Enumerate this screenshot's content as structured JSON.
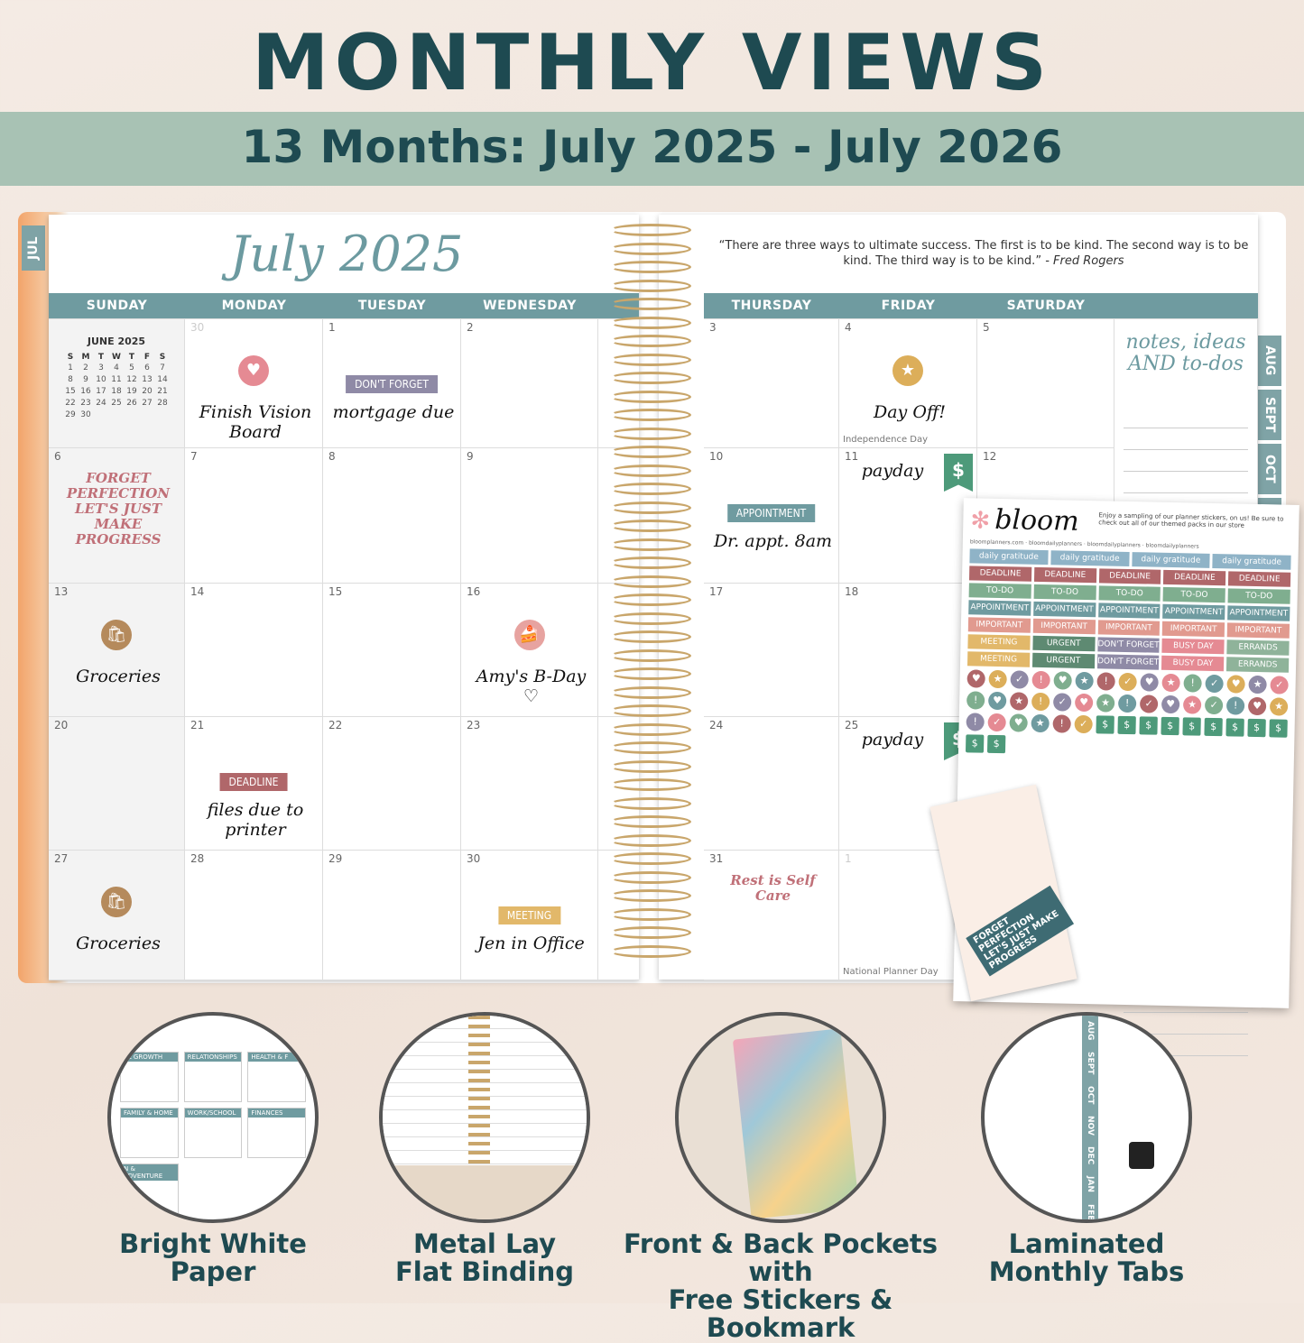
{
  "header": {
    "title": "MONTHLY VIEWS",
    "subtitle": "13 Months: July 2025 - July 2026"
  },
  "planner": {
    "month_title": "July 2025",
    "current_tab": "JUL",
    "quote": "“There are three ways to ultimate success. The first is to be kind. The second way is to be kind. The third way is to be kind.”",
    "quote_author": "- Fred Rogers",
    "left_days": [
      "SUNDAY",
      "MONDAY",
      "TUESDAY",
      "WEDNESDAY"
    ],
    "right_days": [
      "THURSDAY",
      "FRIDAY",
      "SATURDAY"
    ],
    "side_tabs": [
      "AUG",
      "SEPT",
      "OCT",
      "N"
    ],
    "mini_calendar": {
      "title": "JUNE 2025",
      "weekdays": [
        "S",
        "M",
        "T",
        "W",
        "T",
        "F",
        "S"
      ],
      "weeks": [
        [
          "1",
          "2",
          "3",
          "4",
          "5",
          "6",
          "7"
        ],
        [
          "8",
          "9",
          "10",
          "11",
          "12",
          "13",
          "14"
        ],
        [
          "15",
          "16",
          "17",
          "18",
          "19",
          "20",
          "21"
        ],
        [
          "22",
          "23",
          "24",
          "25",
          "26",
          "27",
          "28"
        ],
        [
          "29",
          "30",
          "",
          "",
          "",
          "",
          ""
        ]
      ]
    },
    "left_cells": [
      {
        "mini": true
      },
      {
        "num": "30",
        "faded": true,
        "icon": "heart",
        "icon_color": "#e58a93",
        "note": "Finish Vision Board"
      },
      {
        "num": "1",
        "tag": "DON'T FORGET",
        "tag_color": "#8f8aa6",
        "note": "mortgage due"
      },
      {
        "num": "2"
      },
      {
        "num": "6",
        "sticker": "FORGET PERFECTION LET'S JUST MAKE PROGRESS"
      },
      {
        "num": "7"
      },
      {
        "num": "8"
      },
      {
        "num": "9"
      },
      {
        "num": "13",
        "icon": "grocery-bag",
        "icon_color": "#b58a5c",
        "note": "Groceries"
      },
      {
        "num": "14"
      },
      {
        "num": "15"
      },
      {
        "num": "16",
        "icon": "cake",
        "icon_color": "#e7a3a0",
        "note": "Amy's B-Day ♡"
      },
      {
        "num": "20"
      },
      {
        "num": "21",
        "tag": "DEADLINE",
        "tag_color": "#b0676a",
        "note": "files due to printer"
      },
      {
        "num": "22"
      },
      {
        "num": "23"
      },
      {
        "num": "27",
        "icon": "grocery-bag",
        "icon_color": "#b58a5c",
        "note": "Groceries"
      },
      {
        "num": "28"
      },
      {
        "num": "29"
      },
      {
        "num": "30",
        "tag": "MEETING",
        "tag_color": "#e2b86a",
        "note": "Jen in Office"
      }
    ],
    "right_cells": [
      {
        "num": "3"
      },
      {
        "num": "4",
        "icon": "star",
        "icon_color": "#dcae5a",
        "note": "Day Off!",
        "small": "Independence Day"
      },
      {
        "num": "5"
      },
      {
        "num": "10",
        "tag": "APPOINTMENT",
        "tag_color": "#6f9ba0",
        "note": "Dr. appt. 8am"
      },
      {
        "num": "11",
        "note": "payday",
        "dollar": "$"
      },
      {
        "num": "12"
      },
      {
        "num": "17"
      },
      {
        "num": "18"
      },
      {
        "num": ""
      },
      {
        "num": "24"
      },
      {
        "num": "25",
        "note": "payday",
        "dollar": "$"
      },
      {
        "num": ""
      },
      {
        "num": "31",
        "sticker": "Rest is Self Care"
      },
      {
        "num": "1",
        "faded": true,
        "small": "National Planner Day"
      },
      {
        "num": ""
      }
    ],
    "notes_title": "notes, ideas AND to-dos"
  },
  "sticker_sheet": {
    "brand": "bloom",
    "message": "Enjoy a sampling of our planner stickers, on us! Be sure to check out all of our themed packs in our store",
    "links": "bloomplanners.com · bloomdailyplanners · bloomdailyplanners · bloomdailyplanners",
    "rows": [
      {
        "label": "daily gratitude",
        "count": 4,
        "color": "#8fb3c7"
      },
      {
        "label": "DEADLINE",
        "count": 5,
        "color": "#b0676a"
      },
      {
        "label": "TO-DO",
        "count": 5,
        "color": "#7fae8f"
      },
      {
        "label": "APPOINTMENT",
        "count": 5,
        "color": "#6f9ba0"
      },
      {
        "label": "IMPORTANT",
        "count": 5,
        "color": "#e19a8f"
      },
      {
        "labels": [
          "MEETING",
          "URGENT",
          "DON'T FORGET",
          "BUSY DAY",
          "ERRANDS"
        ],
        "colors": [
          "#e2b86a",
          "#5e8a72",
          "#8f8aa6",
          "#e58a93",
          "#8fb39a"
        ]
      },
      {
        "labels": [
          "MEETING",
          "URGENT",
          "DON'T FORGET",
          "BUSY DAY",
          "ERRANDS"
        ],
        "colors": [
          "#e2b86a",
          "#5e8a72",
          "#8f8aa6",
          "#e58a93",
          "#8fb39a"
        ]
      }
    ],
    "dot_symbols": [
      "♥",
      "★",
      "✓",
      "!",
      "♥",
      "★",
      "!",
      "✓",
      "♥",
      "★",
      "!",
      "✓"
    ],
    "dot_colors": [
      "#b0676a",
      "#dcae5a",
      "#8f8aa6",
      "#e58a93",
      "#7fae8f",
      "#6f9ba0"
    ],
    "bookmark": "FORGET PERFECTION LET'S JUST MAKE PROGRESS"
  },
  "features": [
    {
      "caption_1": "Bright White",
      "caption_2": "Paper"
    },
    {
      "caption_1": "Metal Lay",
      "caption_2": "Flat Binding"
    },
    {
      "caption_1": "Front & Back Pockets with",
      "caption_2": "Free Stickers & Bookmark"
    },
    {
      "caption_1": "Laminated",
      "caption_2": "Monthly Tabs"
    }
  ],
  "feature_details": {
    "paper_sections": [
      "AL GROWTH",
      "RELATIONSHIPS",
      "HEALTH & F",
      "FAMILY & HOME",
      "WORK/SCHOOL",
      "FINANCES",
      "N & ADVENTURE"
    ],
    "tabs": [
      "AUG",
      "SEPT",
      "OCT",
      "NOV",
      "DEC",
      "JAN",
      "FEB"
    ]
  },
  "colors": {
    "teal": "#1e4a51",
    "sage": "#a8c2b4",
    "day_header": "#6f9ba0",
    "gold": "#c9a66b"
  }
}
